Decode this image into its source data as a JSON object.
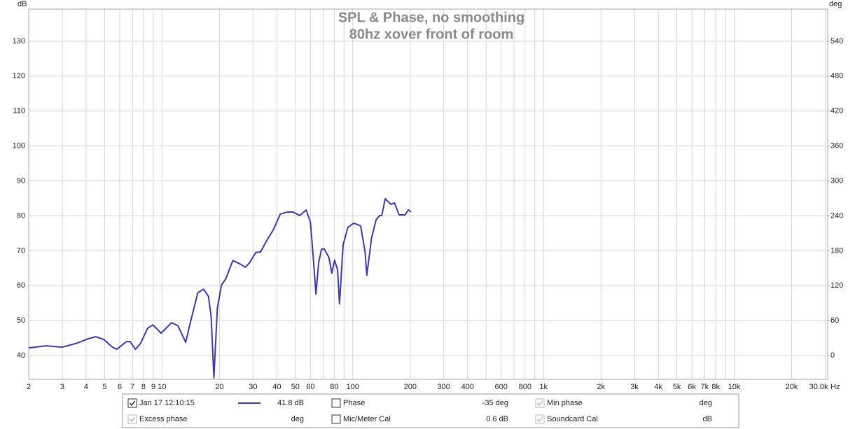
{
  "chart_data": {
    "type": "line",
    "title": "SPL & Phase, no smoothing",
    "subtitle": "80hz xover front of room",
    "y_unit": "dB",
    "y2_unit": "deg",
    "x_unit": "Hz",
    "x_scale": "log",
    "grid": true,
    "xlim": [
      2,
      30900
    ],
    "xticks": [
      2,
      3,
      4,
      5,
      6,
      7,
      8,
      9,
      10,
      20,
      30,
      40,
      50,
      60,
      80,
      100,
      200,
      300,
      400,
      600,
      800,
      {
        "value": 1000,
        "label": "1k"
      },
      {
        "value": 2000,
        "label": "2k"
      },
      {
        "value": 3000,
        "label": "3k"
      },
      {
        "value": 4000,
        "label": "4k"
      },
      {
        "value": 5000,
        "label": "5k"
      },
      {
        "value": 6000,
        "label": "6k"
      },
      {
        "value": 7000,
        "label": "7k"
      },
      {
        "value": 8000,
        "label": "8k"
      },
      {
        "value": 10000,
        "label": "10k"
      },
      {
        "value": 20000,
        "label": "20k"
      },
      {
        "value": 30000,
        "label": "30.0k"
      }
    ],
    "x_minor_ticks": [
      70,
      90,
      500,
      700,
      900,
      9000
    ],
    "ylim": [
      33.2,
      139.2
    ],
    "yticks": [
      40,
      50,
      60,
      70,
      80,
      90,
      100,
      110,
      120,
      130
    ],
    "y2lim": [
      -40.8,
      595.2
    ],
    "y2ticks": [
      0,
      60,
      120,
      180,
      240,
      300,
      360,
      420,
      480,
      540
    ],
    "x": [
      2,
      2.46,
      3,
      3.6,
      4.1,
      4.5,
      4.95,
      5.5,
      5.8,
      6.5,
      6.8,
      7.25,
      7.7,
      8.4,
      8.96,
      9.9,
      11.2,
      12.1,
      13.3,
      14.1,
      15.4,
      16.5,
      17.5,
      18.1,
      18.7,
      19.5,
      20.5,
      21.6,
      23.5,
      25.5,
      27.3,
      28.7,
      31,
      32.9,
      35.2,
      38.4,
      41.7,
      45.3,
      48.5,
      52.8,
      57,
      60,
      62,
      64.1,
      66.3,
      68.6,
      70.9,
      75,
      77.6,
      80.3,
      83.2,
      85.2,
      89,
      94.3,
      101,
      106,
      110,
      116,
      118.5,
      125.5,
      132.6,
      138.5,
      142,
      148,
      158.5,
      165.5,
      175,
      188,
      195.5,
      202
    ],
    "series": [
      {
        "name": "Jan 17 12:10:15",
        "color": "#3d3aa6",
        "readout": "41.8 dB",
        "checked": true,
        "values": [
          42.2,
          42.8,
          42.4,
          43.6,
          44.8,
          45.4,
          44.6,
          42.4,
          41.8,
          44.0,
          44.0,
          41.8,
          43.4,
          47.8,
          48.8,
          46.4,
          49.4,
          48.6,
          43.8,
          49.6,
          58.0,
          59.0,
          57.0,
          51.2,
          33.6,
          53.6,
          60.2,
          62.0,
          67.2,
          66.3,
          65.3,
          66.5,
          69.5,
          69.7,
          72.7,
          76.1,
          80.5,
          81.1,
          81.1,
          80.1,
          81.7,
          78.1,
          68.5,
          57.6,
          66.7,
          70.5,
          70.5,
          68.1,
          63.6,
          67.3,
          64.6,
          54.8,
          71.7,
          76.7,
          77.9,
          77.5,
          77.1,
          69.7,
          63.0,
          73.7,
          78.9,
          80.1,
          80.1,
          84.9,
          83.3,
          83.7,
          80.3,
          80.3,
          81.7,
          81.1
        ]
      }
    ],
    "legend_options": [
      {
        "label": "Phase",
        "readout": "-35 deg",
        "checked": false,
        "enabled": true,
        "color": "#3d3aa6"
      },
      {
        "label": "Min phase",
        "readout": "deg",
        "checked": true,
        "enabled": false,
        "color": "#a0a0a0"
      },
      {
        "label": "Excess phase",
        "readout": "deg",
        "checked": true,
        "enabled": false,
        "color": "#a0a0a0"
      },
      {
        "label": "Mic/Meter Cal",
        "readout": "0.6 dB",
        "checked": false,
        "enabled": true,
        "color": "#000000"
      },
      {
        "label": "Soundcard Cal",
        "readout": "dB",
        "checked": true,
        "enabled": false,
        "color": "#a0a0a0"
      }
    ]
  }
}
